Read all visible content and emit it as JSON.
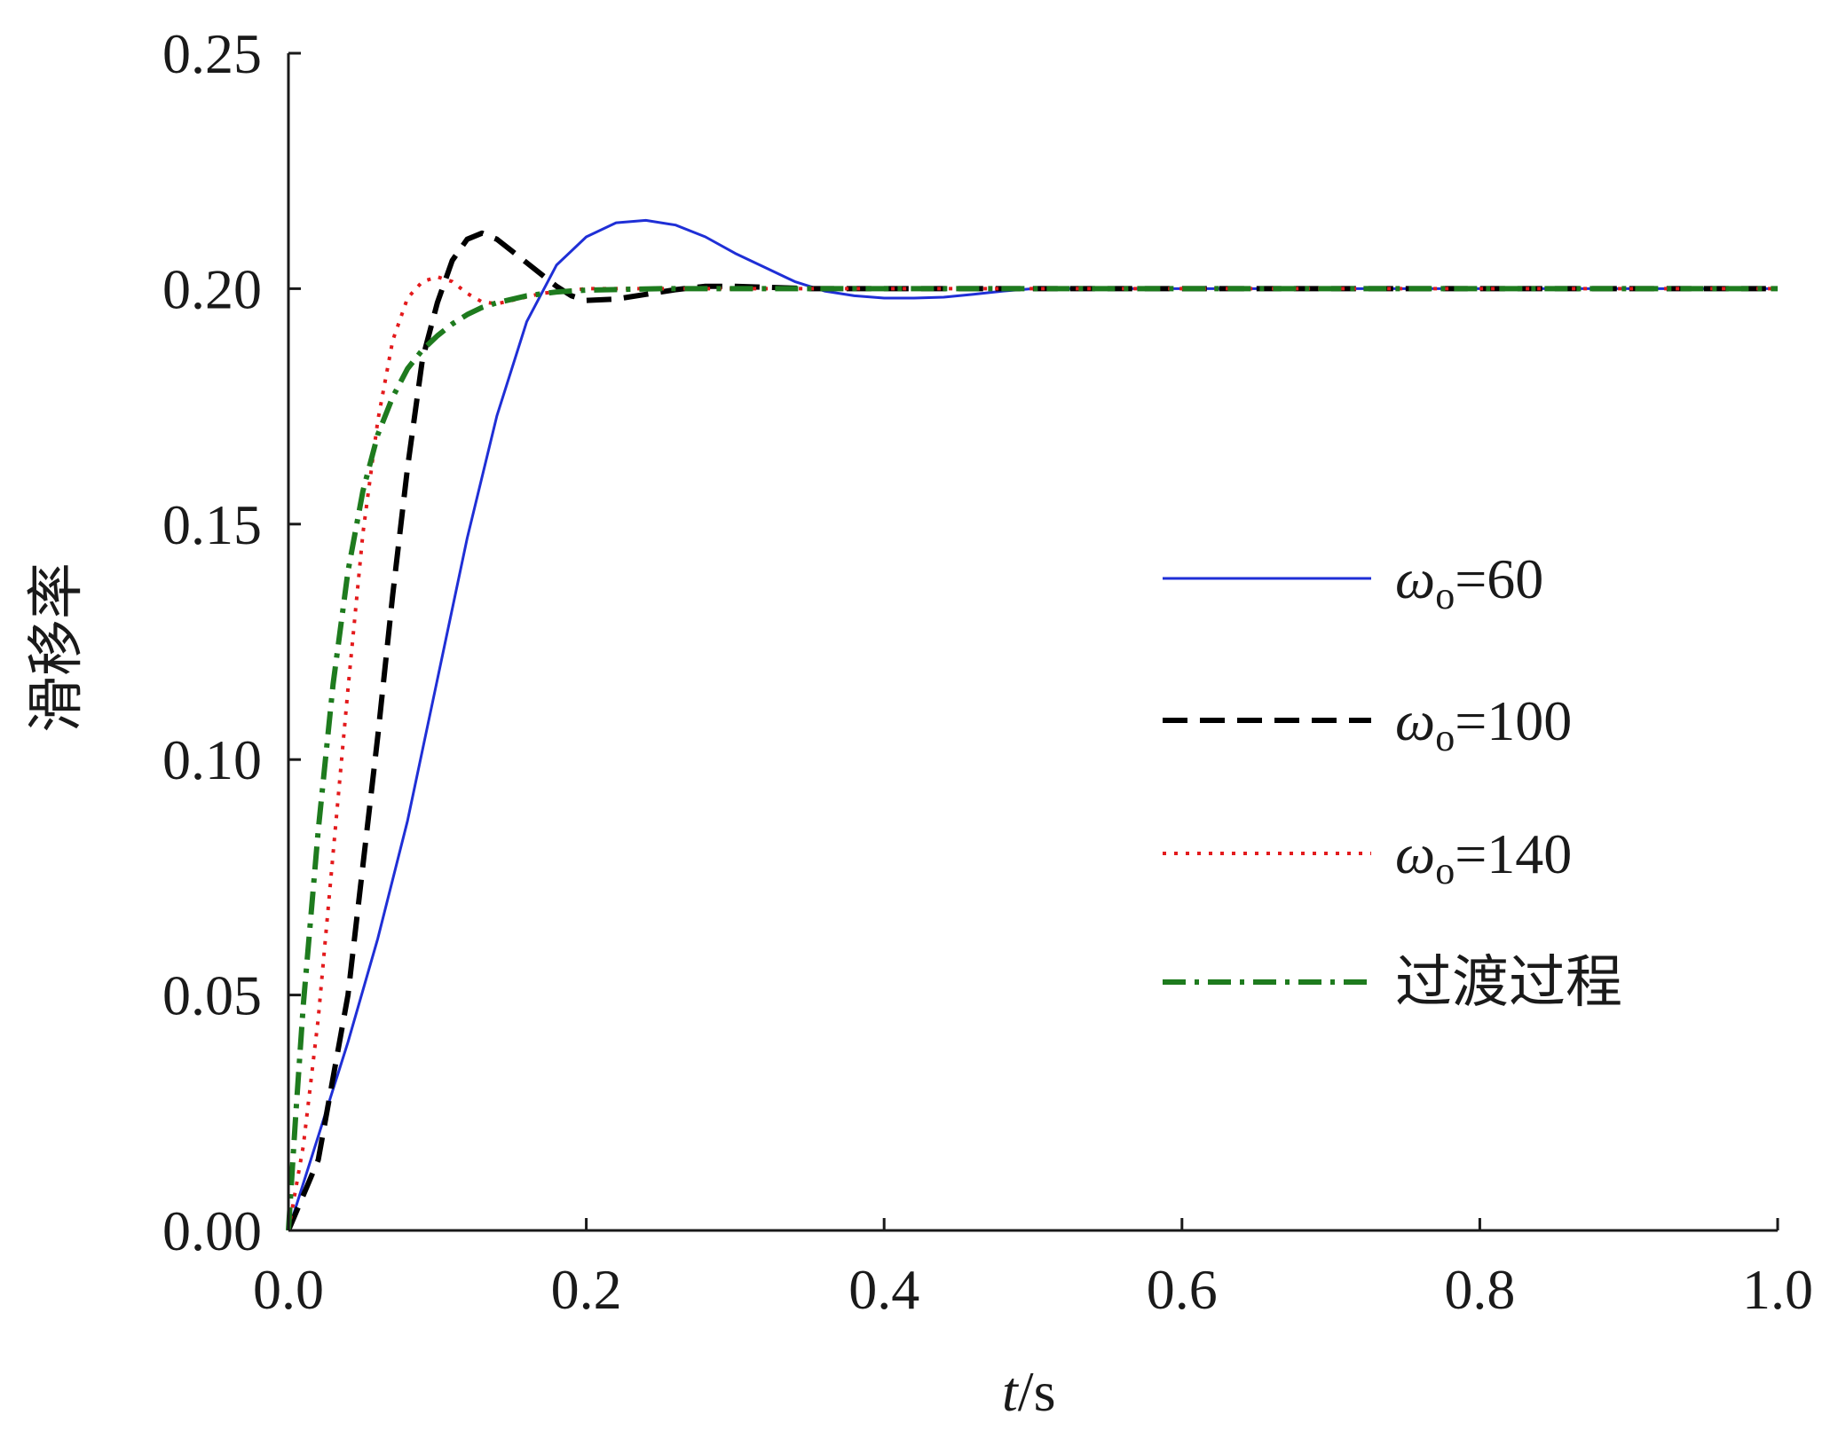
{
  "chart_data": {
    "type": "line",
    "xlabel": {
      "italic": "t",
      "rest": "/s"
    },
    "ylabel": "滑移率",
    "xlim": [
      0.0,
      1.0
    ],
    "ylim": [
      0.0,
      0.25
    ],
    "xticks": [
      "0.0",
      "0.2",
      "0.4",
      "0.6",
      "0.8",
      "1.0"
    ],
    "xtick_values": [
      0.0,
      0.2,
      0.4,
      0.6,
      0.8,
      1.0
    ],
    "yticks": [
      "0.00",
      "0.05",
      "0.10",
      "0.15",
      "0.20",
      "0.25"
    ],
    "ytick_values": [
      0.0,
      0.05,
      0.1,
      0.15,
      0.2,
      0.25
    ],
    "grid": false,
    "legend_position": "center-right",
    "series": [
      {
        "name": "ωo=60",
        "legend": {
          "symbol": "ω",
          "sub": "o",
          "rest": "=60"
        },
        "color": "#1f2fd6",
        "dash": "solid",
        "x": [
          0.0,
          0.02,
          0.04,
          0.06,
          0.08,
          0.1,
          0.12,
          0.14,
          0.16,
          0.18,
          0.2,
          0.22,
          0.24,
          0.26,
          0.28,
          0.3,
          0.32,
          0.34,
          0.36,
          0.38,
          0.4,
          0.42,
          0.44,
          0.46,
          0.48,
          0.5,
          0.6,
          0.7,
          0.8,
          0.9,
          1.0
        ],
        "y": [
          0.0,
          0.02,
          0.04,
          0.062,
          0.087,
          0.117,
          0.147,
          0.173,
          0.193,
          0.205,
          0.211,
          0.214,
          0.2145,
          0.2135,
          0.211,
          0.2075,
          0.2045,
          0.2015,
          0.1995,
          0.1985,
          0.198,
          0.198,
          0.1982,
          0.1988,
          0.1995,
          0.2,
          0.2,
          0.2,
          0.2,
          0.2,
          0.2
        ]
      },
      {
        "name": "ωo=100",
        "legend": {
          "symbol": "ω",
          "sub": "o",
          "rest": "=100"
        },
        "color": "#000000",
        "dash": "dashed",
        "x": [
          0.0,
          0.02,
          0.04,
          0.06,
          0.07,
          0.08,
          0.09,
          0.1,
          0.11,
          0.12,
          0.13,
          0.14,
          0.15,
          0.16,
          0.17,
          0.18,
          0.19,
          0.2,
          0.22,
          0.24,
          0.26,
          0.28,
          0.3,
          0.35,
          0.4,
          0.5,
          0.6,
          0.7,
          0.8,
          0.9,
          1.0
        ],
        "y": [
          0.0,
          0.015,
          0.05,
          0.105,
          0.135,
          0.162,
          0.185,
          0.197,
          0.206,
          0.2105,
          0.2118,
          0.2105,
          0.208,
          0.2055,
          0.203,
          0.2005,
          0.1985,
          0.1975,
          0.1978,
          0.1988,
          0.1998,
          0.2005,
          0.2005,
          0.2,
          0.2,
          0.2,
          0.2,
          0.2,
          0.2,
          0.2,
          0.2
        ]
      },
      {
        "name": "ωo=140",
        "legend": {
          "symbol": "ω",
          "sub": "o",
          "rest": "=140"
        },
        "color": "#e31a1c",
        "dash": "dotted",
        "x": [
          0.0,
          0.01,
          0.02,
          0.03,
          0.04,
          0.05,
          0.06,
          0.07,
          0.08,
          0.09,
          0.1,
          0.11,
          0.12,
          0.13,
          0.14,
          0.15,
          0.17,
          0.2,
          0.25,
          0.3,
          0.4,
          0.5,
          0.6,
          0.7,
          0.8,
          0.9,
          1.0
        ],
        "y": [
          0.0,
          0.018,
          0.045,
          0.08,
          0.115,
          0.148,
          0.172,
          0.189,
          0.198,
          0.2015,
          0.2025,
          0.2015,
          0.199,
          0.1972,
          0.1968,
          0.1975,
          0.199,
          0.2,
          0.2,
          0.2,
          0.2,
          0.2,
          0.2,
          0.2,
          0.2,
          0.2,
          0.2
        ]
      },
      {
        "name": "过渡过程",
        "legend": {
          "text": "过渡过程"
        },
        "color": "#1e7b1e",
        "dash": "dashdot",
        "x": [
          0.0,
          0.005,
          0.01,
          0.02,
          0.03,
          0.04,
          0.05,
          0.06,
          0.07,
          0.08,
          0.09,
          0.1,
          0.11,
          0.12,
          0.13,
          0.14,
          0.16,
          0.18,
          0.2,
          0.25,
          0.3,
          0.4,
          0.5,
          0.6,
          0.7,
          0.8,
          0.9,
          1.0
        ],
        "y": [
          0.0,
          0.025,
          0.048,
          0.085,
          0.116,
          0.14,
          0.157,
          0.169,
          0.177,
          0.183,
          0.187,
          0.19,
          0.1925,
          0.1945,
          0.196,
          0.197,
          0.1985,
          0.1993,
          0.1997,
          0.2,
          0.2,
          0.2,
          0.2,
          0.2,
          0.2,
          0.2,
          0.2,
          0.2
        ]
      }
    ]
  }
}
